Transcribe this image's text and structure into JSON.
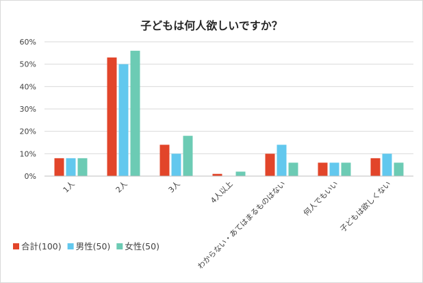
{
  "chart_data": {
    "type": "bar",
    "title": "子どもは何人欲しいですか？",
    "xlabel": "",
    "ylabel": "",
    "categories": [
      "1人",
      "2人",
      "3人",
      "4人以上",
      "わからない・あてはまるものはない",
      "何人でもいい",
      "子どもは欲しくない"
    ],
    "series": [
      {
        "name": "合計(100)",
        "color": "#e2452a",
        "values": [
          8,
          53,
          14,
          1,
          10,
          6,
          8
        ]
      },
      {
        "name": "男性(50)",
        "color": "#62c8ee",
        "values": [
          8,
          50,
          10,
          0,
          14,
          6,
          10
        ]
      },
      {
        "name": "女性(50)",
        "color": "#6ccbb4",
        "values": [
          8,
          56,
          18,
          2,
          6,
          6,
          6
        ]
      }
    ],
    "yticks": [
      0,
      10,
      20,
      30,
      40,
      50,
      60
    ],
    "ytick_labels": [
      "0%",
      "10%",
      "20%",
      "30%",
      "40%",
      "50%",
      "60%"
    ],
    "ylim": [
      0,
      60
    ],
    "grid": true,
    "legend_position": "bottom-left"
  }
}
